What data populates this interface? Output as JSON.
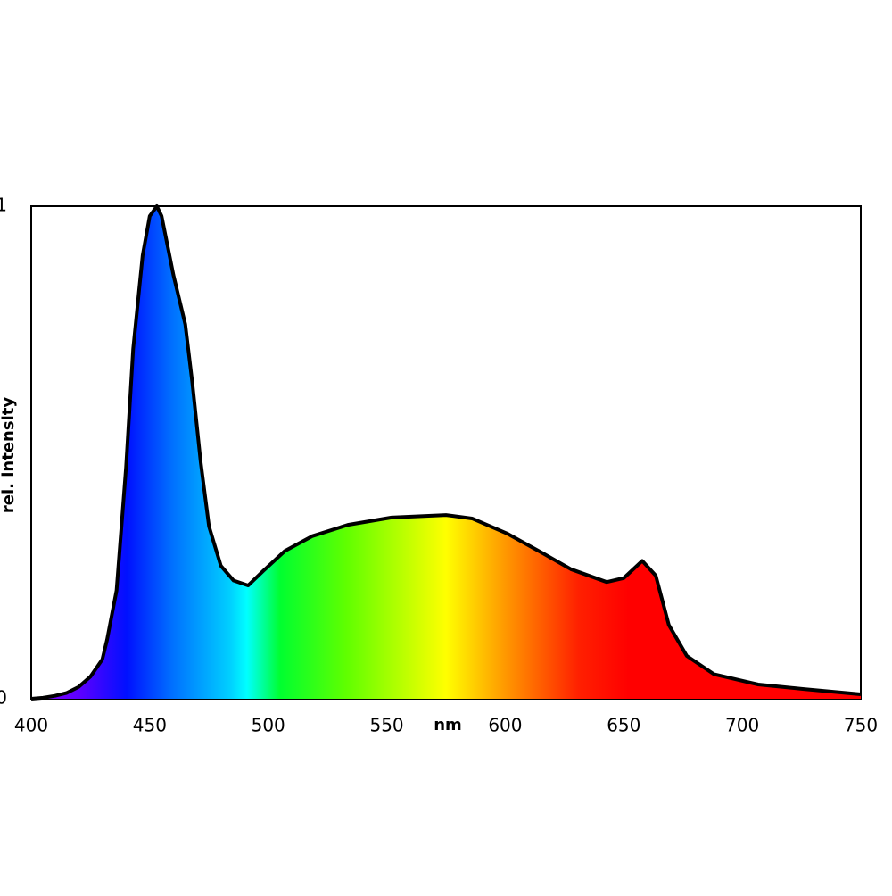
{
  "chart_data": {
    "type": "area",
    "xlabel": "nm",
    "ylabel": "rel. intensity",
    "x": [
      400,
      405,
      410,
      415,
      420,
      425,
      430,
      432,
      436,
      440,
      443,
      447,
      450,
      453,
      455,
      460,
      465,
      468,
      471.5,
      475,
      480,
      485.4,
      491.5,
      498,
      507,
      518.5,
      533.6,
      552,
      575,
      586,
      601,
      616,
      627.7,
      642.8,
      650,
      657.8,
      663.5,
      669,
      676.6,
      688,
      706.7,
      725.5,
      750
    ],
    "values": [
      0,
      0.002,
      0.006,
      0.012,
      0.024,
      0.045,
      0.08,
      0.12,
      0.22,
      0.47,
      0.71,
      0.9,
      0.98,
      1.0,
      0.98,
      0.86,
      0.76,
      0.64,
      0.48,
      0.35,
      0.27,
      0.24,
      0.23,
      0.26,
      0.3,
      0.33,
      0.353,
      0.368,
      0.373,
      0.366,
      0.335,
      0.295,
      0.263,
      0.237,
      0.245,
      0.28,
      0.25,
      0.15,
      0.087,
      0.05,
      0.029,
      0.02,
      0.009
    ],
    "xlim": [
      400,
      750
    ],
    "ylim": [
      0,
      1
    ],
    "xticks": [
      400,
      450,
      500,
      550,
      600,
      650,
      700,
      750
    ],
    "yticks": [
      0,
      1
    ],
    "grid": false,
    "color": "#000000"
  }
}
